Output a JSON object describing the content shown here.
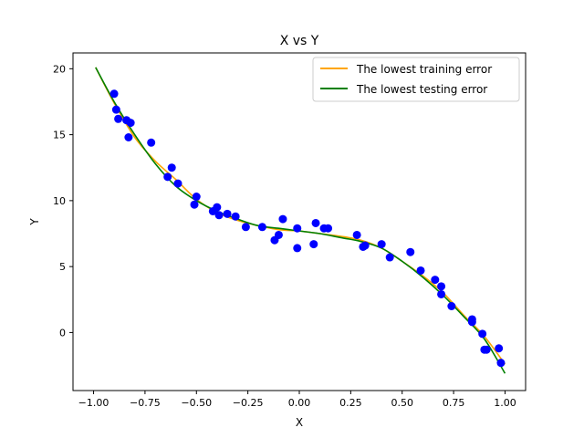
{
  "chart_data": {
    "type": "scatter",
    "title": "X vs Y",
    "xlabel": "X",
    "ylabel": "Y",
    "xlim": [
      -1.1,
      1.1
    ],
    "ylim": [
      -4.4,
      21.2
    ],
    "xticks": [
      -1.0,
      -0.75,
      -0.5,
      -0.25,
      0.0,
      0.25,
      0.5,
      0.75,
      1.0
    ],
    "xtick_labels": [
      "−1.00",
      "−0.75",
      "−0.50",
      "−0.25",
      "0.00",
      "0.25",
      "0.50",
      "0.75",
      "1.00"
    ],
    "yticks": [
      0,
      5,
      10,
      15,
      20
    ],
    "ytick_labels": [
      "0",
      "5",
      "10",
      "15",
      "20"
    ],
    "grid": false,
    "legend_position": "top-right",
    "colors": {
      "points": "#0000ff",
      "training": "#ffa500",
      "testing": "#008000"
    },
    "scatter_points": {
      "x": [
        -0.9,
        -0.89,
        -0.88,
        -0.84,
        -0.83,
        -0.82,
        -0.72,
        -0.64,
        -0.62,
        -0.59,
        -0.51,
        -0.5,
        -0.42,
        -0.4,
        -0.39,
        -0.35,
        -0.31,
        -0.26,
        -0.18,
        -0.12,
        -0.1,
        -0.08,
        -0.01,
        -0.01,
        0.07,
        0.08,
        0.12,
        0.14,
        0.28,
        0.31,
        0.32,
        0.4,
        0.44,
        0.54,
        0.59,
        0.66,
        0.69,
        0.69,
        0.74,
        0.84,
        0.84,
        0.89,
        0.9,
        0.91,
        0.97,
        0.98
      ],
      "y": [
        18.1,
        16.9,
        16.2,
        16.1,
        14.8,
        15.9,
        14.4,
        11.8,
        12.5,
        11.3,
        9.7,
        10.3,
        9.2,
        9.5,
        8.9,
        9.0,
        8.8,
        8.0,
        8.0,
        7.0,
        7.4,
        8.6,
        6.4,
        7.9,
        6.7,
        8.3,
        7.9,
        7.9,
        7.4,
        6.5,
        6.6,
        6.7,
        5.7,
        6.1,
        4.7,
        4.0,
        3.5,
        2.9,
        2.0,
        1.0,
        0.8,
        -0.1,
        -1.3,
        -1.3,
        -1.2,
        -2.3
      ]
    },
    "series": [
      {
        "name": "The lowest training error",
        "x": [
          -0.99,
          -0.9,
          -0.8,
          -0.7,
          -0.6,
          -0.5,
          -0.4,
          -0.3,
          -0.2,
          -0.1,
          0.0,
          0.1,
          0.2,
          0.3,
          0.4,
          0.5,
          0.6,
          0.7,
          0.8,
          0.9,
          1.0
        ],
        "y": [
          20.1,
          17.4,
          14.8,
          13.0,
          11.6,
          10.1,
          9.1,
          8.5,
          8.1,
          7.8,
          7.7,
          7.5,
          7.3,
          7.0,
          6.4,
          5.4,
          4.3,
          3.0,
          1.3,
          -0.3,
          -2.4
        ]
      },
      {
        "name": "The lowest testing error",
        "x": [
          -0.99,
          -0.9,
          -0.8,
          -0.7,
          -0.6,
          -0.5,
          -0.4,
          -0.3,
          -0.2,
          -0.1,
          0.0,
          0.1,
          0.2,
          0.3,
          0.4,
          0.5,
          0.6,
          0.7,
          0.8,
          0.9,
          1.0
        ],
        "y": [
          20.1,
          17.5,
          15.0,
          12.8,
          11.1,
          10.0,
          9.2,
          8.6,
          8.1,
          7.9,
          7.7,
          7.5,
          7.2,
          6.9,
          6.4,
          5.4,
          4.2,
          2.8,
          1.2,
          -0.5,
          -3.1
        ]
      }
    ]
  }
}
